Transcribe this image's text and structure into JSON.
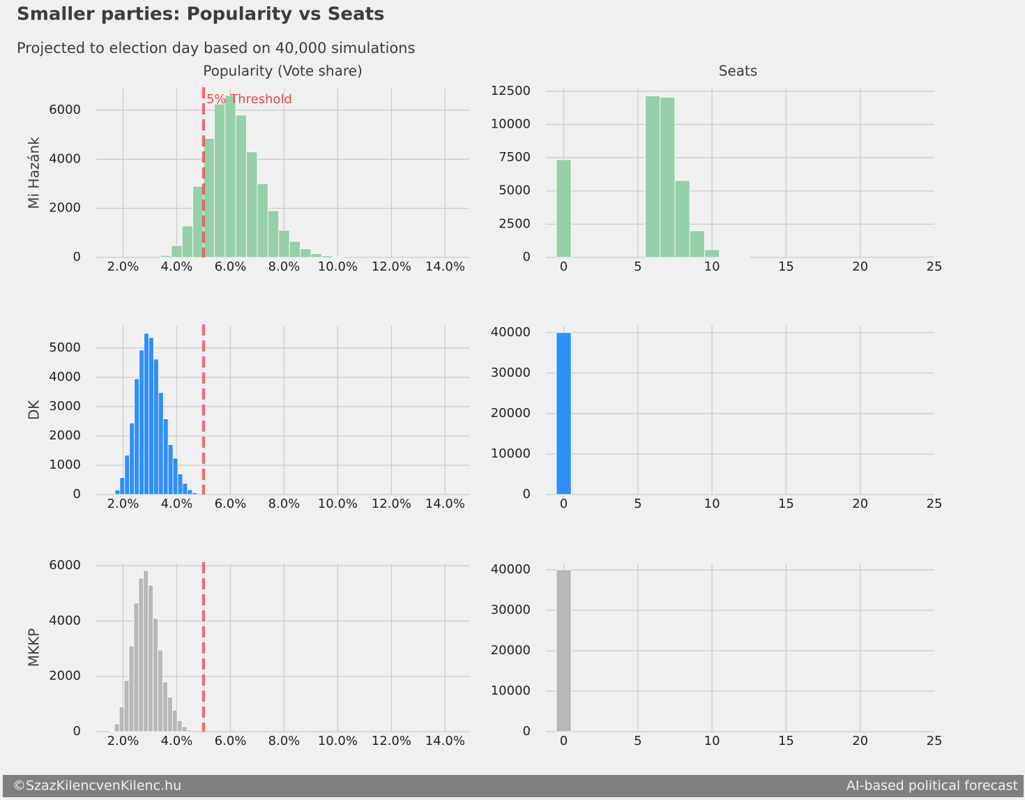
{
  "title": "Smaller parties: Popularity vs Seats",
  "subtitle": "Projected to election day based on 40,000 simulations",
  "footer": {
    "left": "©SzazKilencvenKilenc.hu",
    "right": "AI-based political forecast"
  },
  "chart_data": [
    {
      "type": "histogram",
      "title": "Popularity (Vote share)",
      "ylabel": "Mi Hazánk",
      "color": "#97cfaa",
      "bins": [
        3.4,
        3.8,
        4.2,
        4.6,
        5.0,
        5.4,
        5.8,
        6.2,
        6.6,
        7.0,
        7.4,
        7.8,
        8.2,
        8.6,
        9.0,
        9.4,
        9.8,
        10.2
      ],
      "values": [
        80,
        480,
        1280,
        2900,
        4850,
        6250,
        6600,
        5800,
        4300,
        3000,
        1900,
        1100,
        650,
        350,
        150,
        70,
        20
      ],
      "xlim": [
        1.0,
        14.9
      ],
      "xticks": [
        {
          "value": 2,
          "label": "2.0%"
        },
        {
          "value": 4,
          "label": "4.0%"
        },
        {
          "value": 6,
          "label": "6.0%"
        },
        {
          "value": 8,
          "label": "8.0%"
        },
        {
          "value": 10,
          "label": "10.0%"
        },
        {
          "value": 12,
          "label": "12.0%"
        },
        {
          "value": 14,
          "label": "14.0%"
        }
      ],
      "ylim": [
        0,
        6880
      ],
      "yticks": [
        0,
        2000,
        4000,
        6000
      ],
      "grid": true,
      "threshold": 5,
      "threshold_color": "#e8474a",
      "threshold_label": "5% Threshold"
    },
    {
      "type": "histogram",
      "title": "Seats",
      "color": "#97cfaa",
      "bins": [
        -0.5,
        0.5,
        1.5,
        2.5,
        3.5,
        4.5,
        5.5,
        6.5,
        7.5,
        8.5,
        9.5,
        10.5,
        11.5,
        12.5
      ],
      "values": [
        7350,
        0,
        0,
        0,
        0,
        0,
        12150,
        12050,
        5780,
        2000,
        580,
        60,
        10
      ],
      "xlim": [
        -1.2,
        25
      ],
      "xticks": [
        0,
        5,
        10,
        15,
        20,
        25
      ],
      "ylim": [
        0,
        12700
      ],
      "yticks": [
        0,
        2500,
        5000,
        7500,
        10000,
        12500
      ],
      "grid": true
    },
    {
      "type": "histogram",
      "ylabel": "DK",
      "color": "#2f8ffa",
      "bins": [
        1.7,
        1.88,
        2.06,
        2.24,
        2.42,
        2.6,
        2.78,
        2.96,
        3.14,
        3.32,
        3.5,
        3.68,
        3.86,
        4.04,
        4.22,
        4.4,
        4.58,
        4.76
      ],
      "values": [
        150,
        580,
        1340,
        2440,
        3950,
        4930,
        5500,
        5350,
        4620,
        3480,
        2580,
        1700,
        1240,
        700,
        380,
        160,
        60
      ],
      "xlim": [
        1.0,
        14.9
      ],
      "xticks": [
        {
          "value": 2,
          "label": "2.0%"
        },
        {
          "value": 4,
          "label": "4.0%"
        },
        {
          "value": 6,
          "label": "6.0%"
        },
        {
          "value": 8,
          "label": "8.0%"
        },
        {
          "value": 10,
          "label": "10.0%"
        },
        {
          "value": 12,
          "label": "12.0%"
        },
        {
          "value": 14,
          "label": "14.0%"
        }
      ],
      "ylim": [
        0,
        5760
      ],
      "yticks": [
        0,
        1000,
        2000,
        3000,
        4000,
        5000
      ],
      "grid": true,
      "threshold": 5,
      "threshold_color": "#e8474a"
    },
    {
      "type": "histogram",
      "color": "#2f8ffa",
      "bins": [
        -0.5,
        0.5
      ],
      "values": [
        40000
      ],
      "xlim": [
        -1.2,
        25
      ],
      "xticks": [
        0,
        5,
        10,
        15,
        20,
        25
      ],
      "ylim": [
        0,
        41700
      ],
      "yticks": [
        0,
        10000,
        20000,
        30000,
        40000
      ],
      "grid": true
    },
    {
      "type": "histogram",
      "ylabel": "MKKP",
      "color": "#b8b8b8",
      "bins": [
        1.5,
        1.68,
        1.86,
        2.04,
        2.22,
        2.4,
        2.58,
        2.76,
        2.94,
        3.12,
        3.3,
        3.48,
        3.66,
        3.84,
        4.02,
        4.2,
        4.38,
        4.56
      ],
      "values": [
        20,
        280,
        900,
        1850,
        3100,
        4650,
        5550,
        5830,
        5300,
        4100,
        2950,
        1800,
        1250,
        780,
        400,
        180,
        60
      ],
      "xlim": [
        1.0,
        14.9
      ],
      "xticks": [
        {
          "value": 2,
          "label": "2.0%"
        },
        {
          "value": 4,
          "label": "4.0%"
        },
        {
          "value": 6,
          "label": "6.0%"
        },
        {
          "value": 8,
          "label": "8.0%"
        },
        {
          "value": 10,
          "label": "10.0%"
        },
        {
          "value": 12,
          "label": "12.0%"
        },
        {
          "value": 14,
          "label": "14.0%"
        }
      ],
      "ylim": [
        0,
        6080
      ],
      "yticks": [
        0,
        2000,
        4000,
        6000
      ],
      "grid": true,
      "threshold": 5,
      "threshold_color": "#e8474a"
    },
    {
      "type": "histogram",
      "color": "#b8b8b8",
      "bins": [
        -0.5,
        0.5
      ],
      "values": [
        40000
      ],
      "xlim": [
        -1.2,
        25
      ],
      "xticks": [
        0,
        5,
        10,
        15,
        20,
        25
      ],
      "ylim": [
        0,
        41560
      ],
      "yticks": [
        0,
        10000,
        20000,
        30000,
        40000
      ],
      "grid": true
    }
  ]
}
